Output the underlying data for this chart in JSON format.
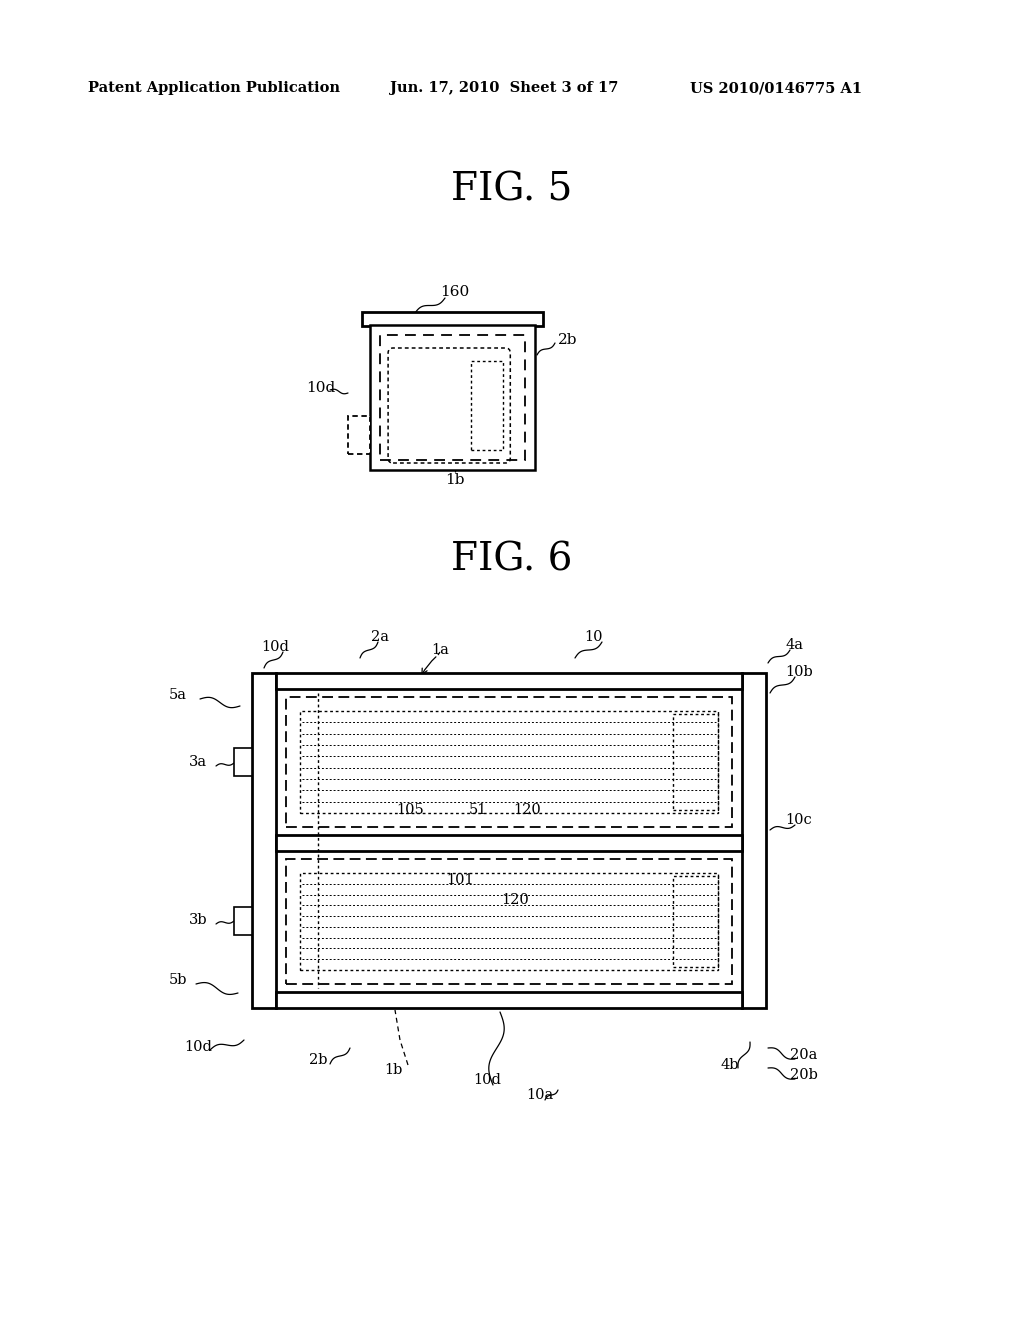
{
  "bg_color": "#ffffff",
  "header_left": "Patent Application Publication",
  "header_center": "Jun. 17, 2010  Sheet 3 of 17",
  "header_right": "US 2010/0146775 A1",
  "fig5_title": "FIG. 5",
  "fig6_title": "FIG. 6"
}
